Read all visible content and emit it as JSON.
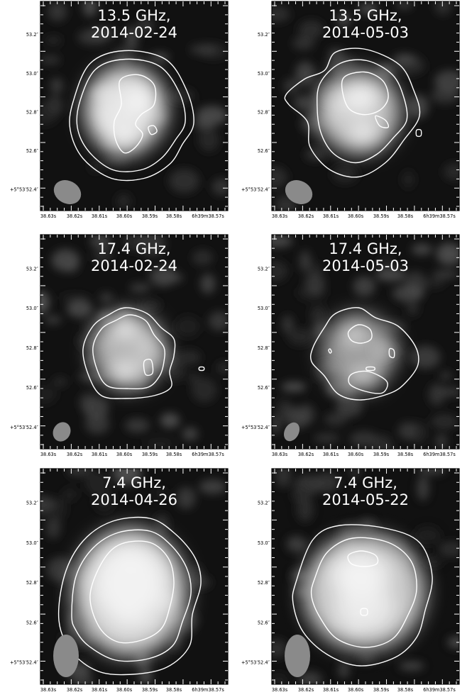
{
  "panels": [
    {
      "title_line1": "13.5 GHz,",
      "title_line2": "2014-02-24",
      "style": "c13a"
    },
    {
      "title_line1": "13.5 GHz,",
      "title_line2": "2014-05-03",
      "style": "c13b"
    },
    {
      "title_line1": "17.4 GHz,",
      "title_line2": "2014-02-24",
      "style": "c17a"
    },
    {
      "title_line1": "17.4 GHz,",
      "title_line2": "2014-05-03",
      "style": "c17b"
    },
    {
      "title_line1": "7.4 GHz,",
      "title_line2": "2014-04-26",
      "style": "c7a"
    },
    {
      "title_line1": "7.4 GHz,",
      "title_line2": "2014-05-22",
      "style": "c7b"
    }
  ],
  "axes": {
    "ra_ticks": [
      "38.63s",
      "38.62s",
      "38.61s",
      "38.60s",
      "38.59s",
      "38.58s",
      "6h39m38.57s"
    ],
    "dec_ticks": [
      "53.2″",
      "53.0″",
      "52.8″",
      "52.6″",
      "+5°53′52.4″"
    ]
  },
  "colors": {
    "background": "#111111",
    "emission_peak": "#f2f2f2",
    "contour": "#ffffff",
    "beam": "#8a8a8a",
    "tick_text": "#000000"
  }
}
